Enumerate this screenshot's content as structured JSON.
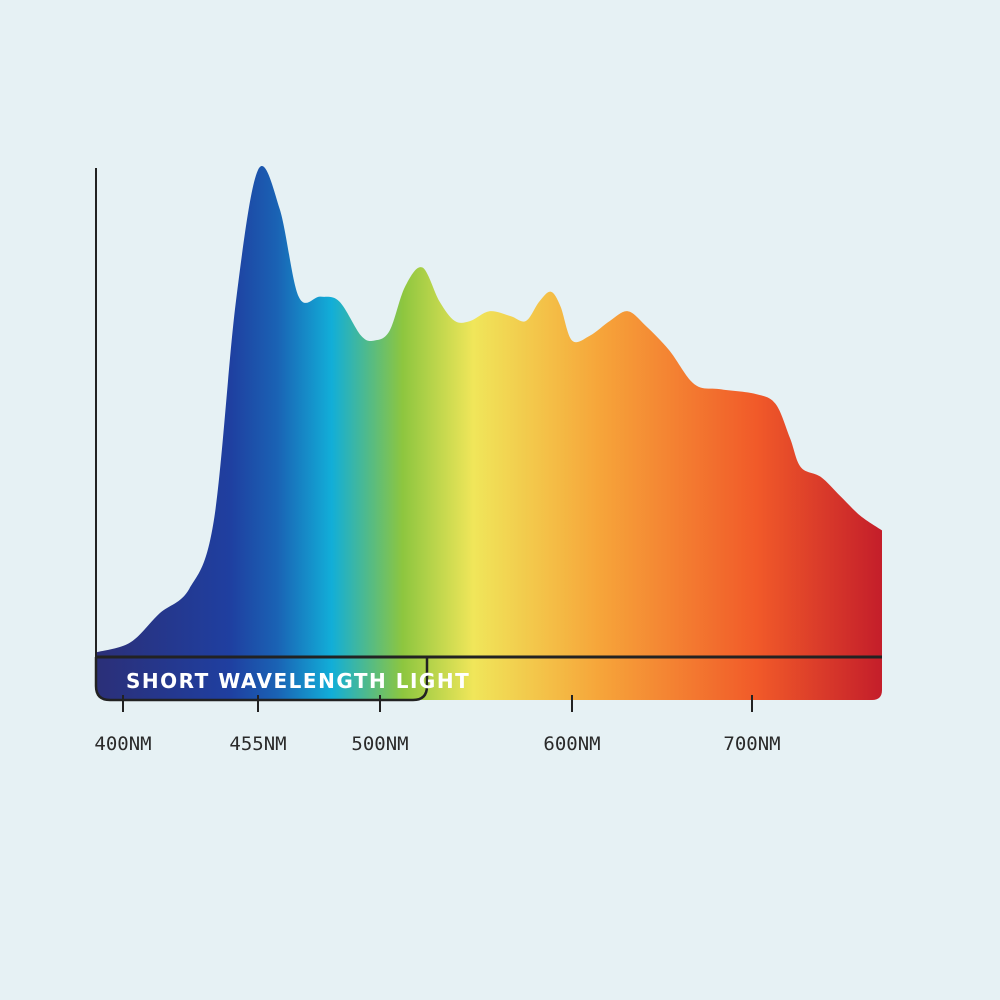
{
  "chart_data": {
    "type": "area",
    "title": "",
    "xlabel": "",
    "ylabel": "",
    "x_unit": "nm",
    "xlim": [
      389,
      772
    ],
    "ylim": [
      0,
      100
    ],
    "grid": false,
    "x_ticks": [
      {
        "value": 400,
        "label": "400NM"
      },
      {
        "value": 455,
        "label": "455NM"
      },
      {
        "value": 500,
        "label": "500NM"
      },
      {
        "value": 600,
        "label": "600NM"
      },
      {
        "value": 700,
        "label": "700NM"
      }
    ],
    "annotation": {
      "label": "SHORT WAVELENGTH LIGHT",
      "range": [
        389,
        525
      ]
    },
    "series": [
      {
        "x": [
          389,
          403,
          415,
          427,
          437,
          446,
          455,
          463,
          470,
          478,
          485,
          493,
          498,
          505,
          513,
          522,
          531,
          539,
          547,
          557,
          568,
          576,
          583,
          589,
          594,
          600,
          610,
          621,
          631,
          641,
          654,
          668,
          682,
          702,
          713,
          721,
          727,
          738,
          749,
          760,
          772
        ],
        "y": [
          1,
          3,
          9,
          14,
          28,
          73,
          100,
          92,
          74,
          74,
          73,
          66,
          65,
          67,
          76,
          80,
          73,
          69,
          69,
          71,
          70,
          69,
          73,
          75,
          72,
          65,
          66,
          69,
          71,
          68,
          63,
          56,
          55,
          54,
          52,
          45,
          39,
          37,
          33,
          29,
          26
        ]
      }
    ],
    "colors": [
      "#2b2f78",
      "#1f3fa0",
      "#1a62b4",
      "#12aed8",
      "#8dc63f",
      "#f0e65a",
      "#f6a53a",
      "#f15a29",
      "#c41e2a"
    ]
  }
}
